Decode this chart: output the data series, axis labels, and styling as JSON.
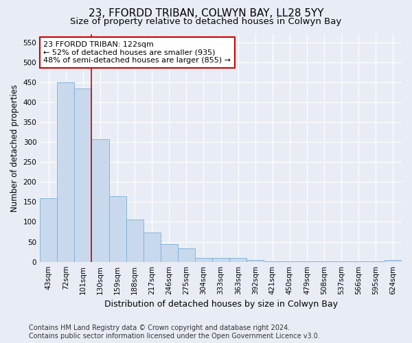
{
  "title": "23, FFORDD TRIBAN, COLWYN BAY, LL28 5YY",
  "subtitle": "Size of property relative to detached houses in Colwyn Bay",
  "xlabel": "Distribution of detached houses by size in Colwyn Bay",
  "ylabel": "Number of detached properties",
  "categories": [
    "43sqm",
    "72sqm",
    "101sqm",
    "130sqm",
    "159sqm",
    "188sqm",
    "217sqm",
    "246sqm",
    "275sqm",
    "304sqm",
    "333sqm",
    "363sqm",
    "392sqm",
    "421sqm",
    "450sqm",
    "479sqm",
    "508sqm",
    "537sqm",
    "566sqm",
    "595sqm",
    "624sqm"
  ],
  "values": [
    160,
    450,
    435,
    307,
    165,
    106,
    74,
    44,
    33,
    10,
    10,
    10,
    5,
    2,
    1,
    1,
    1,
    1,
    1,
    1,
    4
  ],
  "bar_color": "#c8d9ee",
  "bar_edge_color": "#7aadd4",
  "bar_edge_width": 0.6,
  "vline_x": 2.5,
  "vline_color": "#cc0000",
  "annotation_text": "23 FFORDD TRIBAN: 122sqm\n← 52% of detached houses are smaller (935)\n48% of semi-detached houses are larger (855) →",
  "annotation_box_edgecolor": "#cc0000",
  "annotation_box_facecolor": "#ffffff",
  "ylim": [
    0,
    570
  ],
  "yticks": [
    0,
    50,
    100,
    150,
    200,
    250,
    300,
    350,
    400,
    450,
    500,
    550
  ],
  "bg_color": "#e8edf5",
  "plot_bg_color": "#e8edf5",
  "footer_line1": "Contains HM Land Registry data © Crown copyright and database right 2024.",
  "footer_line2": "Contains public sector information licensed under the Open Government Licence v3.0.",
  "title_fontsize": 11,
  "subtitle_fontsize": 9.5,
  "xlabel_fontsize": 9,
  "ylabel_fontsize": 8.5,
  "tick_fontsize": 7.5,
  "annotation_fontsize": 8,
  "footer_fontsize": 7
}
